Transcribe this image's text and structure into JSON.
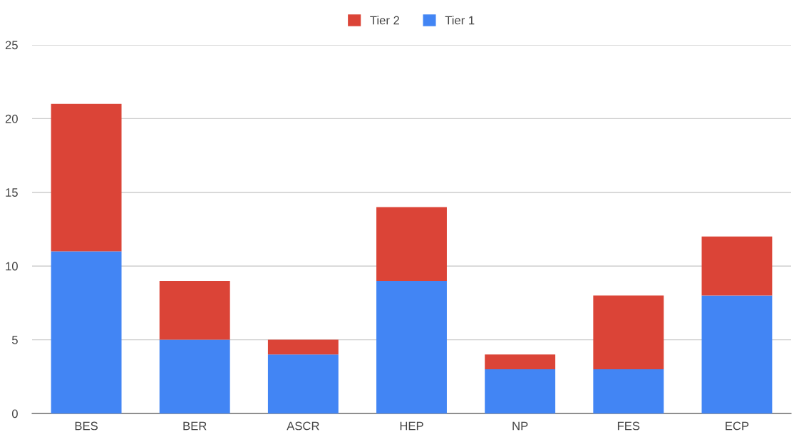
{
  "chart_data": {
    "type": "bar",
    "stacked": true,
    "categories": [
      "BES",
      "BER",
      "ASCR",
      "HEP",
      "NP",
      "FES",
      "ECP"
    ],
    "series": [
      {
        "name": "Tier 1",
        "color": "#4285f4",
        "values": [
          11,
          5,
          4,
          9,
          3,
          3,
          8
        ]
      },
      {
        "name": "Tier 2",
        "color": "#db4437",
        "values": [
          10,
          4,
          1,
          5,
          1,
          5,
          4
        ]
      }
    ],
    "ylim": [
      0,
      25
    ],
    "yticks": [
      0,
      5,
      10,
      15,
      20,
      25
    ],
    "grid": "y",
    "legend": "top"
  }
}
